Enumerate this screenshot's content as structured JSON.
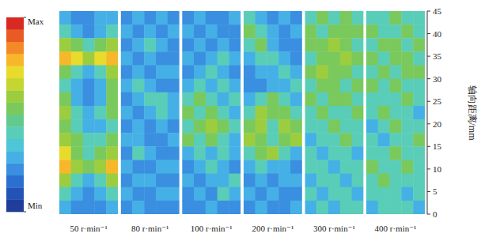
{
  "chart_data": {
    "type": "heatmap",
    "ylabel": "轴向距离/mm",
    "ylim": [
      0,
      45
    ],
    "yticks": [
      0,
      5,
      10,
      15,
      20,
      25,
      30,
      35,
      40,
      45
    ],
    "colorbar": {
      "range": [
        0,
        1
      ],
      "ticks": [
        {
          "value": 0,
          "label": "Min"
        },
        {
          "value": 1,
          "label": "Max"
        }
      ]
    },
    "series": [
      {
        "name": "50 r·min⁻¹",
        "values": [
          [
            0.3,
            0.2,
            0.2,
            0.3,
            0.3
          ],
          [
            0.4,
            0.3,
            0.2,
            0.3,
            0.4
          ],
          [
            0.6,
            0.5,
            0.4,
            0.5,
            0.6
          ],
          [
            0.8,
            0.7,
            0.6,
            0.7,
            0.8
          ],
          [
            0.5,
            0.4,
            0.3,
            0.4,
            0.6
          ],
          [
            0.4,
            0.3,
            0.2,
            0.3,
            0.5
          ],
          [
            0.5,
            0.3,
            0.2,
            0.3,
            0.5
          ],
          [
            0.6,
            0.4,
            0.3,
            0.4,
            0.5
          ],
          [
            0.5,
            0.4,
            0.3,
            0.3,
            0.4
          ],
          [
            0.6,
            0.5,
            0.4,
            0.4,
            0.5
          ],
          [
            0.7,
            0.5,
            0.4,
            0.5,
            0.6
          ],
          [
            0.8,
            0.6,
            0.5,
            0.6,
            0.8
          ],
          [
            0.6,
            0.4,
            0.3,
            0.4,
            0.6
          ],
          [
            0.4,
            0.3,
            0.2,
            0.3,
            0.4
          ],
          [
            0.3,
            0.2,
            0.2,
            0.2,
            0.3
          ]
        ]
      },
      {
        "name": "80 r·min⁻¹",
        "values": [
          [
            0.2,
            0.3,
            0.2,
            0.3,
            0.2
          ],
          [
            0.3,
            0.2,
            0.3,
            0.2,
            0.3
          ],
          [
            0.2,
            0.3,
            0.4,
            0.3,
            0.2
          ],
          [
            0.3,
            0.2,
            0.3,
            0.2,
            0.2
          ],
          [
            0.2,
            0.3,
            0.2,
            0.3,
            0.3
          ],
          [
            0.3,
            0.4,
            0.3,
            0.2,
            0.2
          ],
          [
            0.2,
            0.3,
            0.4,
            0.4,
            0.3
          ],
          [
            0.3,
            0.2,
            0.3,
            0.4,
            0.3
          ],
          [
            0.2,
            0.3,
            0.2,
            0.3,
            0.2
          ],
          [
            0.3,
            0.3,
            0.2,
            0.2,
            0.3
          ],
          [
            0.2,
            0.4,
            0.3,
            0.2,
            0.2
          ],
          [
            0.3,
            0.2,
            0.2,
            0.3,
            0.3
          ],
          [
            0.2,
            0.3,
            0.3,
            0.2,
            0.2
          ],
          [
            0.3,
            0.2,
            0.2,
            0.3,
            0.3
          ],
          [
            0.2,
            0.3,
            0.2,
            0.2,
            0.2
          ]
        ]
      },
      {
        "name": "100 r·min⁻¹",
        "values": [
          [
            0.2,
            0.3,
            0.2,
            0.2,
            0.3
          ],
          [
            0.3,
            0.2,
            0.3,
            0.2,
            0.2
          ],
          [
            0.2,
            0.3,
            0.2,
            0.3,
            0.2
          ],
          [
            0.3,
            0.2,
            0.3,
            0.4,
            0.3
          ],
          [
            0.2,
            0.3,
            0.4,
            0.3,
            0.2
          ],
          [
            0.3,
            0.4,
            0.3,
            0.4,
            0.3
          ],
          [
            0.4,
            0.5,
            0.4,
            0.3,
            0.4
          ],
          [
            0.5,
            0.4,
            0.5,
            0.4,
            0.3
          ],
          [
            0.4,
            0.5,
            0.6,
            0.5,
            0.4
          ],
          [
            0.5,
            0.4,
            0.5,
            0.4,
            0.3
          ],
          [
            0.3,
            0.4,
            0.3,
            0.4,
            0.3
          ],
          [
            0.2,
            0.3,
            0.4,
            0.3,
            0.2
          ],
          [
            0.3,
            0.2,
            0.3,
            0.3,
            0.4
          ],
          [
            0.2,
            0.3,
            0.2,
            0.4,
            0.3
          ],
          [
            0.2,
            0.2,
            0.3,
            0.2,
            0.2
          ]
        ]
      },
      {
        "name": "200 r·min⁻¹",
        "values": [
          [
            0.4,
            0.3,
            0.2,
            0.3,
            0.2
          ],
          [
            0.5,
            0.4,
            0.3,
            0.2,
            0.3
          ],
          [
            0.4,
            0.5,
            0.3,
            0.2,
            0.2
          ],
          [
            0.3,
            0.4,
            0.4,
            0.3,
            0.2
          ],
          [
            0.2,
            0.3,
            0.3,
            0.4,
            0.3
          ],
          [
            0.2,
            0.2,
            0.3,
            0.3,
            0.4
          ],
          [
            0.3,
            0.4,
            0.5,
            0.4,
            0.3
          ],
          [
            0.4,
            0.6,
            0.5,
            0.5,
            0.4
          ],
          [
            0.5,
            0.6,
            0.4,
            0.6,
            0.5
          ],
          [
            0.6,
            0.5,
            0.4,
            0.5,
            0.6
          ],
          [
            0.4,
            0.5,
            0.6,
            0.4,
            0.3
          ],
          [
            0.3,
            0.4,
            0.3,
            0.3,
            0.2
          ],
          [
            0.2,
            0.3,
            0.2,
            0.3,
            0.3
          ],
          [
            0.3,
            0.2,
            0.3,
            0.2,
            0.2
          ],
          [
            0.2,
            0.3,
            0.2,
            0.2,
            0.3
          ]
        ]
      },
      {
        "name": "300 r·min⁻¹",
        "values": [
          [
            0.4,
            0.5,
            0.4,
            0.5,
            0.4
          ],
          [
            0.5,
            0.4,
            0.5,
            0.5,
            0.5
          ],
          [
            0.5,
            0.5,
            0.6,
            0.5,
            0.4
          ],
          [
            0.4,
            0.5,
            0.5,
            0.6,
            0.5
          ],
          [
            0.5,
            0.6,
            0.5,
            0.5,
            0.4
          ],
          [
            0.4,
            0.5,
            0.5,
            0.4,
            0.5
          ],
          [
            0.5,
            0.4,
            0.5,
            0.5,
            0.4
          ],
          [
            0.4,
            0.5,
            0.4,
            0.4,
            0.5
          ],
          [
            0.4,
            0.4,
            0.5,
            0.4,
            0.4
          ],
          [
            0.3,
            0.4,
            0.4,
            0.5,
            0.4
          ],
          [
            0.4,
            0.3,
            0.4,
            0.4,
            0.3
          ],
          [
            0.4,
            0.4,
            0.3,
            0.4,
            0.4
          ],
          [
            0.3,
            0.4,
            0.4,
            0.3,
            0.4
          ],
          [
            0.4,
            0.3,
            0.4,
            0.4,
            0.3
          ],
          [
            0.3,
            0.4,
            0.3,
            0.4,
            0.4
          ]
        ]
      },
      {
        "name": "400 r·min⁻¹",
        "values": [
          [
            0.4,
            0.4,
            0.5,
            0.4,
            0.4
          ],
          [
            0.5,
            0.4,
            0.4,
            0.5,
            0.4
          ],
          [
            0.4,
            0.5,
            0.5,
            0.4,
            0.5
          ],
          [
            0.5,
            0.4,
            0.5,
            0.5,
            0.4
          ],
          [
            0.4,
            0.5,
            0.4,
            0.5,
            0.5
          ],
          [
            0.5,
            0.4,
            0.5,
            0.4,
            0.4
          ],
          [
            0.4,
            0.4,
            0.4,
            0.5,
            0.4
          ],
          [
            0.4,
            0.5,
            0.4,
            0.4,
            0.3
          ],
          [
            0.3,
            0.4,
            0.5,
            0.4,
            0.4
          ],
          [
            0.4,
            0.3,
            0.4,
            0.4,
            0.5
          ],
          [
            0.4,
            0.4,
            0.5,
            0.4,
            0.4
          ],
          [
            0.5,
            0.4,
            0.4,
            0.5,
            0.4
          ],
          [
            0.4,
            0.5,
            0.4,
            0.4,
            0.4
          ],
          [
            0.4,
            0.4,
            0.4,
            0.3,
            0.4
          ],
          [
            0.3,
            0.4,
            0.4,
            0.4,
            0.3
          ]
        ]
      }
    ]
  }
}
